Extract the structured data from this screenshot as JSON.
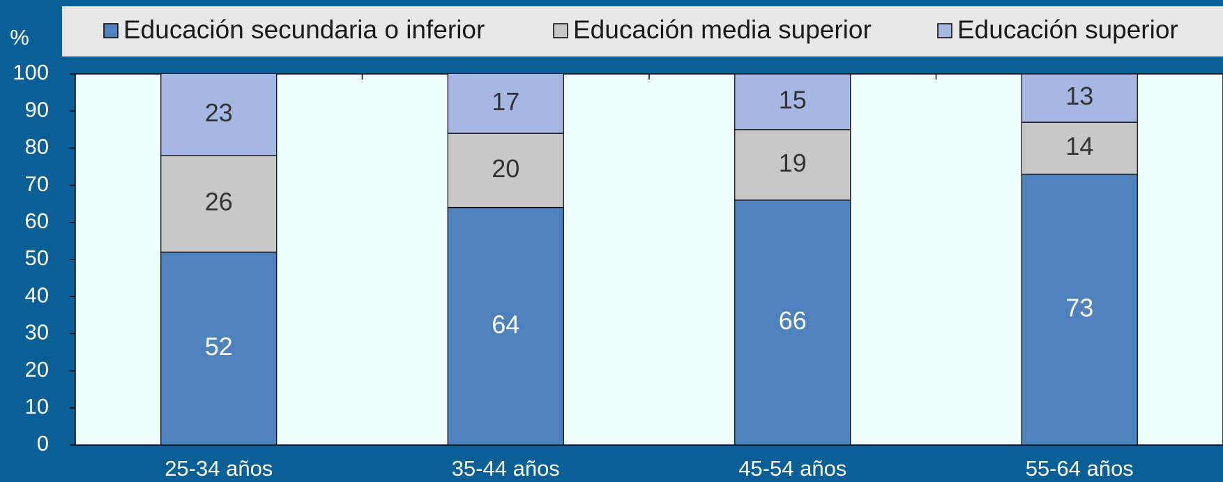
{
  "chart_data": {
    "type": "stacked_bar",
    "y_label": "%",
    "categories": [
      "25-34 años",
      "35-44 años",
      "45-54 años",
      "55-64 años"
    ],
    "series": [
      {
        "name": "Educación secundaria o inferior",
        "color": "#4f81bd",
        "values": [
          52,
          64,
          66,
          73
        ]
      },
      {
        "name": "Educación media superior",
        "color": "#c8c8c8",
        "values": [
          26,
          20,
          19,
          14
        ]
      },
      {
        "name": "Educación superior",
        "color": "#a7b7e3",
        "values": [
          23,
          17,
          15,
          13
        ]
      }
    ],
    "ylim": [
      0,
      100
    ],
    "yticks": [
      0,
      10,
      20,
      30,
      40,
      50,
      60,
      70,
      80,
      90,
      100
    ],
    "legend": "top",
    "grid": false
  }
}
